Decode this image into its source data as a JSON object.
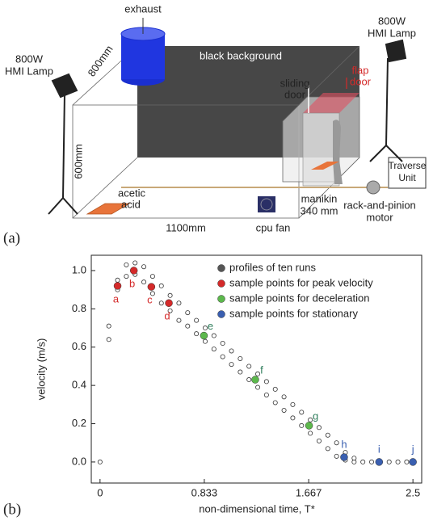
{
  "diagram": {
    "exhaust": "exhaust",
    "lamp_left": [
      "800W",
      "HMI Lamp"
    ],
    "lamp_right": [
      "800W",
      "HMI Lamp"
    ],
    "depth": "800mm",
    "background": "black background",
    "sliding_door": [
      "sliding",
      "door"
    ],
    "flap_door": [
      "flap",
      "door"
    ],
    "height": "600mm",
    "acid": [
      "acetic",
      "acid"
    ],
    "width": "1100mm",
    "fan": "cpu fan",
    "manikin": [
      "manikin",
      "340 mm"
    ],
    "traverse": [
      "Traverse",
      "Unit"
    ],
    "motor": [
      "rack-and-pinion",
      "motor"
    ]
  },
  "panel_labels": [
    "(a)",
    "(b)"
  ],
  "chart_data": {
    "type": "scatter",
    "xlabel": "non-dimensional time, T*",
    "ylabel": "velocity (m/s)",
    "xlim": [
      -0.07,
      2.57
    ],
    "ylim": [
      -0.11,
      1.08
    ],
    "xticks": [
      0,
      0.833,
      1.667,
      2.5
    ],
    "yticks": [
      {
        "value": 0,
        "label": "0.0"
      },
      0.2,
      0.4,
      0.6,
      0.8,
      {
        "value": 1,
        "label": "1.0"
      }
    ],
    "legend": "upper right",
    "series": [
      {
        "name": "profiles of ten runs",
        "color": "#555555",
        "hollow": true,
        "x": [
          0,
          0.07,
          0.07,
          0.14,
          0.14,
          0.21,
          0.21,
          0.28,
          0.28,
          0.35,
          0.35,
          0.42,
          0.42,
          0.49,
          0.49,
          0.56,
          0.56,
          0.63,
          0.63,
          0.7,
          0.7,
          0.77,
          0.77,
          0.84,
          0.84,
          0.91,
          0.91,
          0.98,
          0.98,
          1.05,
          1.05,
          1.12,
          1.12,
          1.19,
          1.19,
          1.26,
          1.26,
          1.33,
          1.33,
          1.4,
          1.4,
          1.47,
          1.47,
          1.54,
          1.54,
          1.61,
          1.61,
          1.68,
          1.68,
          1.75,
          1.75,
          1.82,
          1.82,
          1.89,
          1.89,
          1.96,
          1.96,
          2.03,
          2.03,
          2.1,
          2.17,
          2.24,
          2.31,
          2.38,
          2.45
        ],
        "y": [
          0.0,
          0.64,
          0.71,
          0.9,
          0.95,
          0.97,
          1.03,
          0.98,
          1.04,
          0.94,
          1.02,
          0.88,
          0.97,
          0.83,
          0.92,
          0.79,
          0.87,
          0.74,
          0.83,
          0.71,
          0.78,
          0.67,
          0.74,
          0.63,
          0.7,
          0.59,
          0.66,
          0.55,
          0.62,
          0.51,
          0.58,
          0.47,
          0.54,
          0.43,
          0.5,
          0.39,
          0.46,
          0.35,
          0.42,
          0.31,
          0.38,
          0.27,
          0.34,
          0.23,
          0.3,
          0.19,
          0.26,
          0.15,
          0.22,
          0.11,
          0.18,
          0.07,
          0.14,
          0.03,
          0.1,
          0.01,
          0.05,
          0.0,
          0.02,
          0.0,
          0.0,
          0.0,
          0.0,
          0.0,
          0.0
        ]
      },
      {
        "name": "sample points for peak velocity",
        "color": "#d42a2a",
        "x": [
          0.14,
          0.27,
          0.41,
          0.55
        ],
        "y": [
          0.92,
          1.0,
          0.915,
          0.83
        ],
        "labels": [
          "a",
          "b",
          "c",
          "d"
        ]
      },
      {
        "name": "sample points for deceleration",
        "color": "#5cb84c",
        "label_color": "#2e7d5b",
        "x": [
          0.83,
          1.24,
          1.67
        ],
        "y": [
          0.66,
          0.43,
          0.19
        ],
        "labels": [
          "e",
          "f",
          "g"
        ]
      },
      {
        "name": "sample points for stationary",
        "color": "#3a5fb0",
        "x": [
          1.95,
          2.23,
          2.5
        ],
        "y": [
          0.025,
          0.0,
          0.0
        ],
        "labels": [
          "h",
          "i",
          "j"
        ]
      }
    ]
  }
}
